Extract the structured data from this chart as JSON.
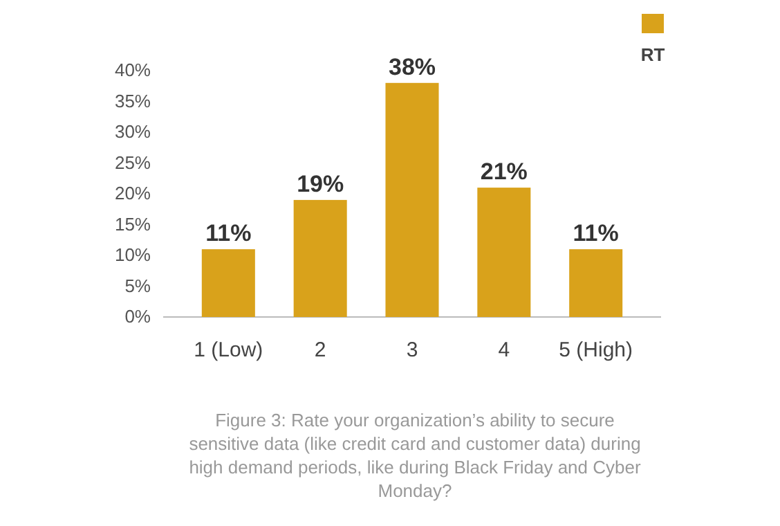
{
  "chart_data": {
    "type": "bar",
    "categories": [
      "1 (Low)",
      "2",
      "3",
      "4",
      "5 (High)"
    ],
    "series": [
      {
        "name": "RT",
        "color": "#d9a21b",
        "values": [
          11,
          19,
          38,
          21,
          11
        ]
      }
    ],
    "value_labels": [
      "11%",
      "19%",
      "38%",
      "21%",
      "11%"
    ],
    "ylim": [
      0,
      40
    ],
    "yticks": [
      {
        "value": 0,
        "label": "0%"
      },
      {
        "value": 5,
        "label": "5%"
      },
      {
        "value": 10,
        "label": "10%"
      },
      {
        "value": 15,
        "label": "15%"
      },
      {
        "value": 20,
        "label": "20%"
      },
      {
        "value": 25,
        "label": "25%"
      },
      {
        "value": 30,
        "label": "30%"
      },
      {
        "value": 35,
        "label": "35%"
      },
      {
        "value": 40,
        "label": "40%"
      }
    ],
    "grid": false,
    "legend": "top right",
    "annotations": [
      "Figure 3: Rate your organization’s ability to secure sensitive data (like credit card and customer data) during high demand periods, like during Black Friday and Cyber Monday?"
    ]
  }
}
